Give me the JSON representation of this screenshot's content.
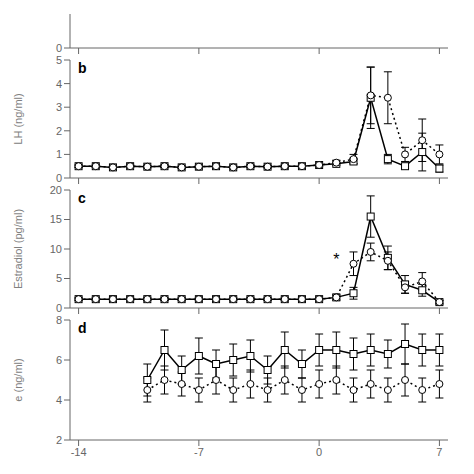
{
  "chart_data": [
    {
      "type": "line",
      "x": [],
      "series": [],
      "xlim": [
        -14.5,
        7.5
      ],
      "xticks": [
        -14,
        -7,
        0,
        7
      ],
      "ylim": [
        0,
        1
      ],
      "yticks": [
        0
      ],
      "tick_labels": "y",
      "grid": false
    },
    {
      "type": "line",
      "title": "b",
      "y_label": "LH  (ng/ml)",
      "x": [
        -14,
        -13,
        -12,
        -11,
        -10,
        -9,
        -8,
        -7,
        -6,
        -5,
        -4,
        -3,
        -2,
        -1,
        0,
        1,
        2,
        3,
        4,
        5,
        6,
        7
      ],
      "series": [
        {
          "color": "#000000",
          "marker": "square",
          "line_style": "solid",
          "values": [
            0.5,
            0.5,
            0.45,
            0.5,
            0.48,
            0.5,
            0.45,
            0.48,
            0.5,
            0.45,
            0.5,
            0.48,
            0.5,
            0.5,
            0.55,
            0.6,
            0.7,
            3.4,
            0.8,
            0.5,
            1.1,
            0.4
          ],
          "error": [
            0.05,
            0.05,
            0.05,
            0.05,
            0.05,
            0.05,
            0.05,
            0.05,
            0.05,
            0.05,
            0.05,
            0.05,
            0.05,
            0.05,
            0.05,
            0.05,
            0.1,
            1.3,
            0.2,
            0.1,
            0.8,
            0.15
          ]
        },
        {
          "color": "#000000",
          "marker": "circle",
          "line_style": "dotted",
          "values": [
            0.5,
            0.5,
            0.45,
            0.5,
            0.48,
            0.5,
            0.45,
            0.48,
            0.5,
            0.45,
            0.5,
            0.48,
            0.5,
            0.5,
            0.55,
            0.65,
            0.8,
            3.5,
            3.4,
            1.0,
            1.6,
            1.0
          ],
          "error": [
            0.05,
            0.05,
            0.05,
            0.05,
            0.05,
            0.05,
            0.05,
            0.05,
            0.05,
            0.05,
            0.05,
            0.05,
            0.05,
            0.05,
            0.05,
            0.1,
            0.2,
            1.2,
            1.1,
            0.3,
            0.9,
            0.4
          ]
        }
      ],
      "xlim": [
        -14.5,
        7.5
      ],
      "xticks": [
        -14,
        -7,
        0,
        7
      ],
      "ylim": [
        0,
        5
      ],
      "yticks": [
        0,
        1,
        2,
        3,
        4,
        5
      ],
      "tick_labels": "y",
      "grid": false
    },
    {
      "type": "line",
      "title": "c",
      "y_label": "Estradiol  (pg/ml)",
      "x": [
        -14,
        -13,
        -12,
        -11,
        -10,
        -9,
        -8,
        -7,
        -6,
        -5,
        -4,
        -3,
        -2,
        -1,
        0,
        1,
        2,
        3,
        4,
        5,
        6,
        7
      ],
      "series": [
        {
          "color": "#000000",
          "marker": "square",
          "line_style": "solid",
          "values": [
            1.5,
            1.5,
            1.5,
            1.5,
            1.5,
            1.5,
            1.5,
            1.5,
            1.5,
            1.5,
            1.5,
            1.5,
            1.5,
            1.5,
            1.5,
            1.8,
            2.5,
            15.5,
            8.5,
            4.0,
            3.0,
            1.0
          ],
          "error": [
            0.2,
            0.2,
            0.2,
            0.2,
            0.2,
            0.2,
            0.2,
            0.2,
            0.2,
            0.2,
            0.2,
            0.2,
            0.2,
            0.2,
            0.2,
            0.3,
            1.0,
            3.5,
            2.0,
            1.5,
            1.0,
            0.3
          ]
        },
        {
          "color": "#000000",
          "marker": "circle",
          "line_style": "dotted",
          "values": [
            1.5,
            1.5,
            1.5,
            1.5,
            1.5,
            1.5,
            1.5,
            1.5,
            1.5,
            1.5,
            1.5,
            1.5,
            1.5,
            1.5,
            1.5,
            1.8,
            7.5,
            9.5,
            8.0,
            3.5,
            4.5,
            1.0
          ],
          "error": [
            0.2,
            0.2,
            0.2,
            0.2,
            0.2,
            0.2,
            0.2,
            0.2,
            0.2,
            0.2,
            0.2,
            0.2,
            0.2,
            0.2,
            0.2,
            0.5,
            2.0,
            1.5,
            1.5,
            1.0,
            1.5,
            0.3
          ]
        }
      ],
      "annotations": [
        {
          "text": "*",
          "x": 1,
          "y": 8.2
        }
      ],
      "xlim": [
        -14.5,
        7.5
      ],
      "xticks": [
        -14,
        -7,
        0,
        7
      ],
      "ylim": [
        0,
        20
      ],
      "yticks": [
        0,
        5,
        10,
        15,
        20
      ],
      "tick_labels": "y",
      "grid": false
    },
    {
      "type": "line",
      "title": "d",
      "y_label": "e  (ng/ml)",
      "x": [
        -14,
        -13,
        -12,
        -11,
        -10,
        -9,
        -8,
        -7,
        -6,
        -5,
        -4,
        -3,
        -2,
        -1,
        0,
        1,
        2,
        3,
        4,
        5,
        6,
        7
      ],
      "series": [
        {
          "color": "#000000",
          "marker": "square",
          "line_style": "solid",
          "values": [
            null,
            null,
            null,
            null,
            5.0,
            6.5,
            5.5,
            6.2,
            5.8,
            6.0,
            6.2,
            5.5,
            6.5,
            5.8,
            6.5,
            6.5,
            6.3,
            6.5,
            6.3,
            6.8,
            6.5,
            6.5
          ],
          "error": [
            null,
            null,
            null,
            null,
            0.8,
            1.0,
            0.7,
            0.9,
            0.7,
            0.8,
            0.8,
            0.7,
            0.9,
            0.7,
            0.8,
            0.9,
            0.8,
            0.8,
            0.7,
            1.0,
            0.8,
            0.8
          ]
        },
        {
          "color": "#000000",
          "marker": "circle",
          "line_style": "dotted",
          "values": [
            null,
            null,
            null,
            null,
            4.5,
            5.0,
            4.8,
            4.5,
            5.0,
            4.5,
            4.8,
            4.5,
            5.0,
            4.5,
            4.8,
            5.0,
            4.5,
            4.8,
            4.5,
            5.0,
            4.5,
            4.8
          ],
          "error": [
            null,
            null,
            null,
            null,
            0.6,
            0.7,
            0.6,
            0.6,
            0.7,
            0.6,
            0.7,
            0.6,
            0.7,
            0.6,
            0.7,
            0.7,
            0.6,
            0.7,
            0.6,
            0.8,
            0.6,
            0.7
          ]
        }
      ],
      "xlim": [
        -14.5,
        7.5
      ],
      "xticks": [
        -14,
        -7,
        0,
        7
      ],
      "ylim": [
        2,
        8
      ],
      "yticks": [
        2,
        4,
        6,
        8
      ],
      "grid": false
    }
  ]
}
